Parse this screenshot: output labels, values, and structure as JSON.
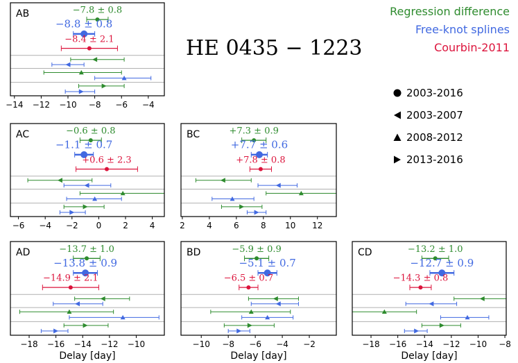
{
  "figure_title": "HE 0435 − 1223",
  "legend": [
    {
      "label": "Regression difference",
      "color": "#2e8b2e"
    },
    {
      "label": "Free-knot splines",
      "color": "#4169e1"
    },
    {
      "label": "Courbin-2011",
      "color": "#dc143c"
    }
  ],
  "marker_legend": [
    {
      "label": "2003-2016",
      "marker": "circle-icon"
    },
    {
      "label": "2003-2007",
      "marker": "triangle-left-icon"
    },
    {
      "label": "2008-2012",
      "marker": "triangle-up-icon"
    },
    {
      "label": "2013-2016",
      "marker": "triangle-right-icon"
    }
  ],
  "chart_data": [
    {
      "type": "scatter",
      "title": "AB",
      "xlabel": "",
      "xlim": [
        -14.3,
        -2.8
      ],
      "xticks": [
        -14,
        -12,
        -10,
        -8,
        -6,
        -4
      ],
      "tick_labels": [
        "−14",
        "−12",
        "−10",
        "−8",
        "−6",
        "−4"
      ],
      "summary": [
        {
          "series": "Regression difference",
          "value": -7.8,
          "err": 0.8,
          "label": "−7.8 ± 0.8"
        },
        {
          "series": "Free-knot splines",
          "value": -8.8,
          "err": 0.8,
          "label": "−8.8 ± 0.8"
        },
        {
          "series": "Courbin-2011",
          "value": -8.4,
          "err": 2.1,
          "label": "−8.4 ± 2.1"
        }
      ],
      "periods": [
        {
          "period": "2003-2007",
          "marker": "left",
          "rd": [
            -8.0,
            -9.8,
            -5.8
          ],
          "fks": [
            -10.0,
            -11.2,
            -8.8
          ]
        },
        {
          "period": "2008-2012",
          "marker": "up",
          "rd": [
            -9.0,
            -11.8,
            -6.0
          ],
          "fks": [
            -5.8,
            -8.0,
            -3.8
          ]
        },
        {
          "period": "2013-2016",
          "marker": "right",
          "rd": [
            -7.3,
            -9.2,
            -5.8
          ],
          "fks": [
            -9.0,
            -10.2,
            -8.0
          ]
        }
      ]
    },
    {
      "type": "scatter",
      "title": "AC",
      "xlabel": "",
      "xlim": [
        -6.6,
        4.9
      ],
      "xticks": [
        -6,
        -4,
        -2,
        0,
        2,
        4
      ],
      "tick_labels": [
        "−6",
        "−4",
        "−2",
        "0",
        "2",
        "4"
      ],
      "summary": [
        {
          "series": "Regression difference",
          "value": -0.6,
          "err": 0.8,
          "label": "−0.6 ± 0.8"
        },
        {
          "series": "Free-knot splines",
          "value": -1.1,
          "err": 0.7,
          "label": "−1.1 ± 0.7"
        },
        {
          "series": "Courbin-2011",
          "value": 0.6,
          "err": 2.3,
          "label": "+0.6 ± 2.3"
        }
      ],
      "periods": [
        {
          "period": "2003-2007",
          "marker": "left",
          "rd": [
            -2.9,
            -5.3,
            -0.5
          ],
          "fks": [
            -0.9,
            -2.6,
            0.9
          ]
        },
        {
          "period": "2008-2012",
          "marker": "up",
          "rd": [
            1.8,
            -1.4,
            5.0
          ],
          "fks": [
            -0.3,
            -2.4,
            1.7
          ]
        },
        {
          "period": "2013-2016",
          "marker": "right",
          "rd": [
            -1.0,
            -2.6,
            0.4
          ],
          "fks": [
            -2.0,
            -2.9,
            -1.0
          ]
        }
      ]
    },
    {
      "type": "scatter",
      "title": "BC",
      "xlabel": "",
      "xlim": [
        1.9,
        13.4
      ],
      "xticks": [
        2,
        4,
        6,
        8,
        10,
        12
      ],
      "tick_labels": [
        "2",
        "4",
        "6",
        "8",
        "10",
        "12"
      ],
      "summary": [
        {
          "series": "Regression difference",
          "value": 7.3,
          "err": 0.9,
          "label": "+7.3 ± 0.9"
        },
        {
          "series": "Free-knot splines",
          "value": 7.7,
          "err": 0.6,
          "label": "+7.7 ± 0.6"
        },
        {
          "series": "Courbin-2011",
          "value": 7.8,
          "err": 0.8,
          "label": "+7.8 ± 0.8"
        }
      ],
      "periods": [
        {
          "period": "2003-2007",
          "marker": "left",
          "rd": [
            5.0,
            3.0,
            7.1
          ],
          "fks": [
            9.1,
            7.6,
            10.5
          ]
        },
        {
          "period": "2008-2012",
          "marker": "up",
          "rd": [
            10.8,
            8.2,
            13.4
          ],
          "fks": [
            5.7,
            4.2,
            7.3
          ]
        },
        {
          "period": "2013-2016",
          "marker": "right",
          "rd": [
            6.4,
            4.9,
            7.9
          ],
          "fks": [
            7.5,
            6.8,
            8.2
          ]
        }
      ]
    },
    {
      "type": "scatter",
      "title": "AD",
      "xlabel": "Delay [day]",
      "xlim": [
        -19.4,
        -7.9
      ],
      "xticks": [
        -18,
        -16,
        -14,
        -12,
        -10
      ],
      "tick_labels": [
        "−18",
        "−16",
        "−14",
        "−12",
        "−10"
      ],
      "summary": [
        {
          "series": "Regression difference",
          "value": -13.7,
          "err": 1.0,
          "label": "−13.7 ± 1.0"
        },
        {
          "series": "Free-knot splines",
          "value": -13.8,
          "err": 0.9,
          "label": "−13.8 ± 0.9"
        },
        {
          "series": "Courbin-2011",
          "value": -14.9,
          "err": 2.1,
          "label": "−14.9 ± 2.1"
        }
      ],
      "periods": [
        {
          "period": "2003-2007",
          "marker": "left",
          "rd": [
            -12.5,
            -14.6,
            -10.5
          ],
          "fks": [
            -14.4,
            -16.2,
            -12.5
          ]
        },
        {
          "period": "2008-2012",
          "marker": "up",
          "rd": [
            -15.0,
            -18.7,
            -11.7
          ],
          "fks": [
            -11.0,
            -15.0,
            -8.3
          ]
        },
        {
          "period": "2013-2016",
          "marker": "right",
          "rd": [
            -13.8,
            -15.4,
            -12.1
          ],
          "fks": [
            -16.0,
            -17.1,
            -15.1
          ]
        }
      ]
    },
    {
      "type": "scatter",
      "title": "BD",
      "xlabel": "Delay [day]",
      "xlim": [
        -11.5,
        0.0
      ],
      "xticks": [
        -10,
        -8,
        -6,
        -4,
        -2
      ],
      "tick_labels": [
        "−10",
        "−8",
        "−6",
        "−4",
        "−2"
      ],
      "summary": [
        {
          "series": "Regression difference",
          "value": -5.9,
          "err": 0.9,
          "label": "−5.9 ± 0.9"
        },
        {
          "series": "Free-knot splines",
          "value": -5.1,
          "err": 0.7,
          "label": "−5.1 ± 0.7"
        },
        {
          "series": "Courbin-2011",
          "value": -6.5,
          "err": 0.7,
          "label": "−6.5 ± 0.7"
        }
      ],
      "periods": [
        {
          "period": "2003-2007",
          "marker": "left",
          "rd": [
            -4.5,
            -6.5,
            -2.8
          ],
          "fks": [
            -4.3,
            -6.3,
            -2.8
          ]
        },
        {
          "period": "2008-2012",
          "marker": "up",
          "rd": [
            -6.3,
            -9.3,
            -3.4
          ],
          "fks": [
            -5.1,
            -7.0,
            -3.2
          ]
        },
        {
          "period": "2013-2016",
          "marker": "right",
          "rd": [
            -6.4,
            -8.3,
            -4.6
          ],
          "fks": [
            -7.2,
            -8.0,
            -6.4
          ]
        }
      ]
    },
    {
      "type": "scatter",
      "title": "CD",
      "xlabel": "Delay [day]",
      "xlim": [
        -19.4,
        -7.9
      ],
      "xticks": [
        -18,
        -16,
        -14,
        -12,
        -10,
        -8
      ],
      "tick_labels": [
        "−18",
        "−16",
        "−14",
        "−12",
        "−10",
        "−8"
      ],
      "summary": [
        {
          "series": "Regression difference",
          "value": -13.2,
          "err": 1.0,
          "label": "−13.2 ± 1.0"
        },
        {
          "series": "Free-knot splines",
          "value": -12.7,
          "err": 0.9,
          "label": "−12.7 ± 0.9"
        },
        {
          "series": "Courbin-2011",
          "value": -14.3,
          "err": 0.8,
          "label": "−14.3 ± 0.8"
        }
      ],
      "periods": [
        {
          "period": "2003-2007",
          "marker": "left",
          "rd": [
            -9.7,
            -11.8,
            -7.9
          ],
          "fks": [
            -13.5,
            -15.4,
            -11.6
          ]
        },
        {
          "period": "2008-2012",
          "marker": "up",
          "rd": [
            -17.0,
            -19.4,
            -14.6
          ],
          "fks": [
            -10.8,
            -12.8,
            -9.2
          ]
        },
        {
          "period": "2013-2016",
          "marker": "right",
          "rd": [
            -12.7,
            -14.2,
            -11.3
          ],
          "fks": [
            -14.6,
            -15.5,
            -13.8
          ]
        }
      ]
    }
  ]
}
